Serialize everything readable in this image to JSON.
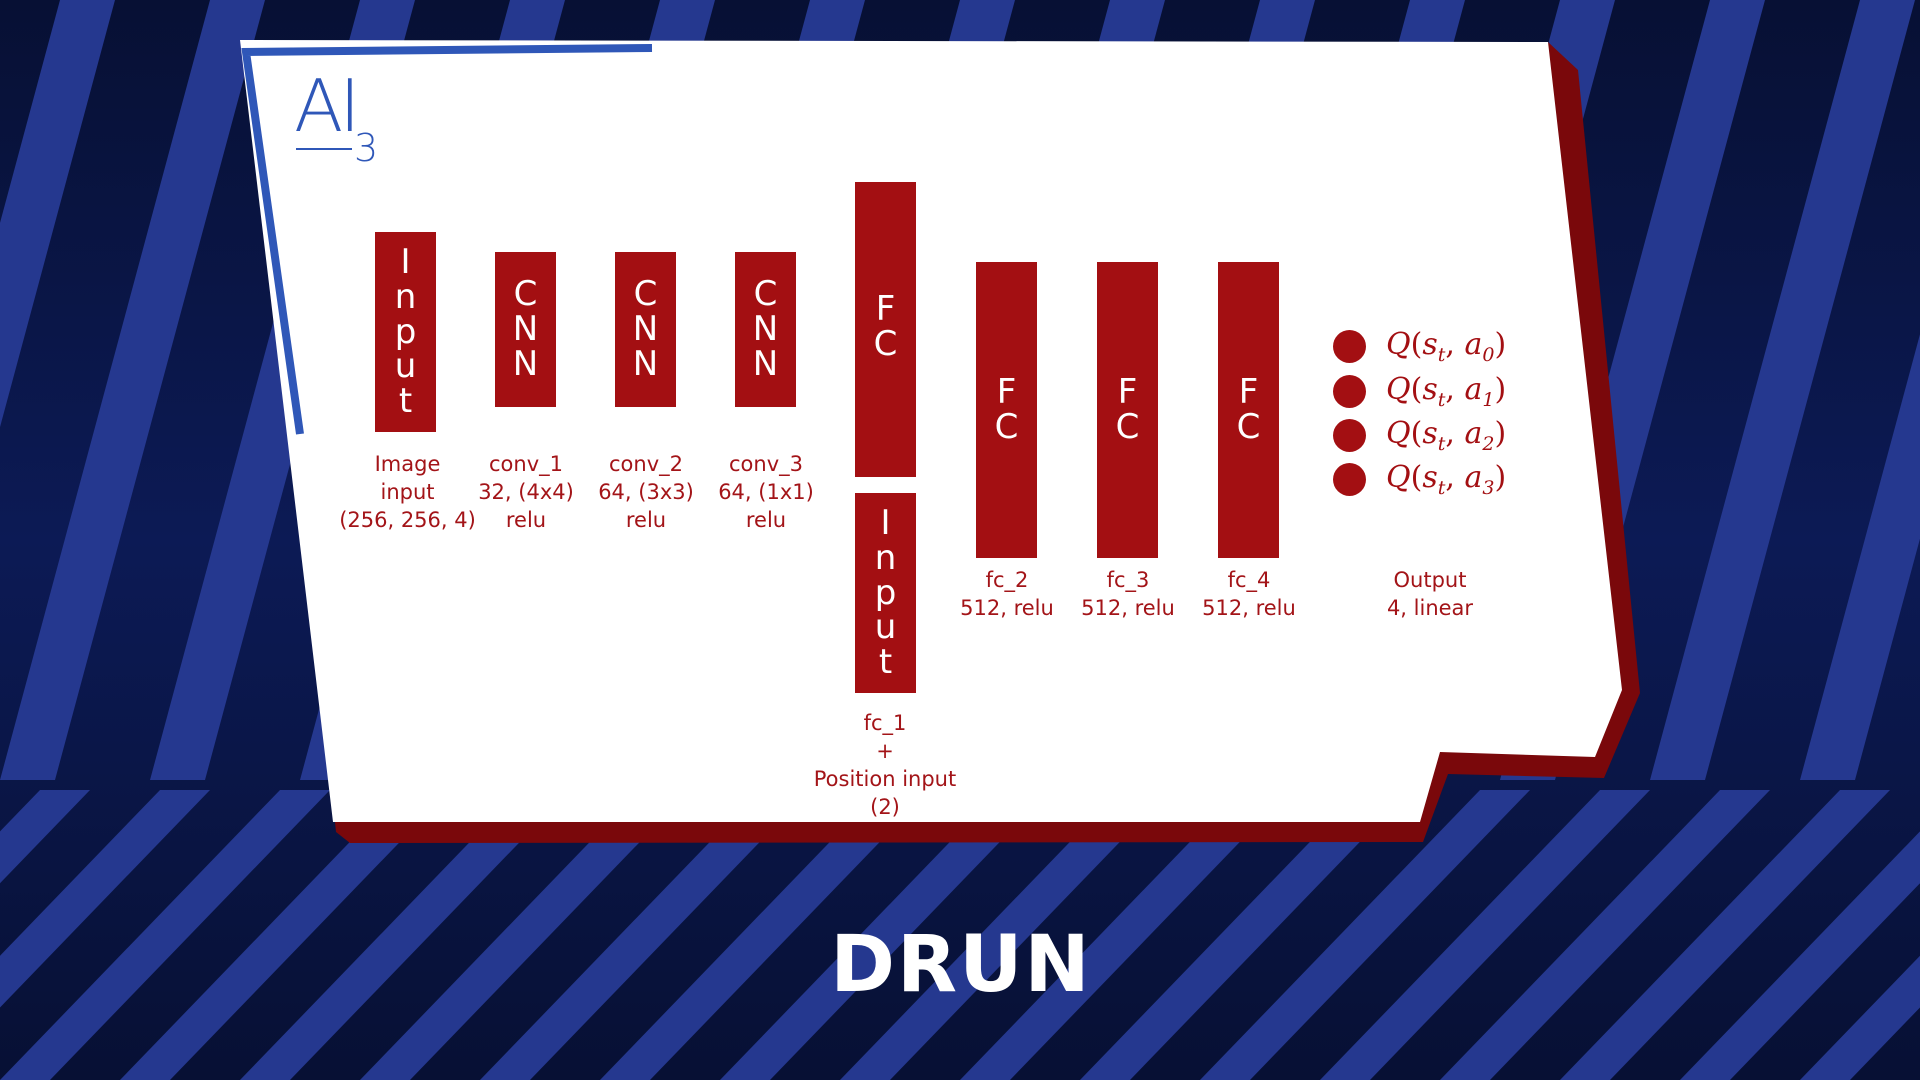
{
  "logo": {
    "main": "AI",
    "sub": "3"
  },
  "blocks": {
    "input_image": "Input",
    "cnn1": "CNN",
    "cnn2": "CNN",
    "cnn3": "CNN",
    "fc1": "FC",
    "input_pos": "Input",
    "fc2": "FC",
    "fc3": "FC",
    "fc4": "FC"
  },
  "labels": {
    "input_image": "Image\ninput\n(256, 256, 4)",
    "conv1": "conv_1\n32, (4x4)\nrelu",
    "conv2": "conv_2\n64, (3x3)\nrelu",
    "conv3": "conv_3\n64, (1x1)\nrelu",
    "fc1": "fc_1\n+\nPosition input\n(2)",
    "fc2": "fc_2\n512, relu",
    "fc3": "fc_3\n512, relu",
    "fc4": "fc_4\n512, relu",
    "output": "Output\n4, linear"
  },
  "outputs": [
    {
      "q": "Q",
      "s": "s",
      "s_sub": "t",
      "a": "a",
      "a_sub": "0"
    },
    {
      "q": "Q",
      "s": "s",
      "s_sub": "t",
      "a": "a",
      "a_sub": "1"
    },
    {
      "q": "Q",
      "s": "s",
      "s_sub": "t",
      "a": "a",
      "a_sub": "2"
    },
    {
      "q": "Q",
      "s": "s",
      "s_sub": "t",
      "a": "a",
      "a_sub": "3"
    }
  ],
  "brand": "DRUN",
  "colors": {
    "accent_red": "#a30f12",
    "dark_red": "#6e0608",
    "blue": "#2f57b8",
    "navy": "#0a1440"
  }
}
